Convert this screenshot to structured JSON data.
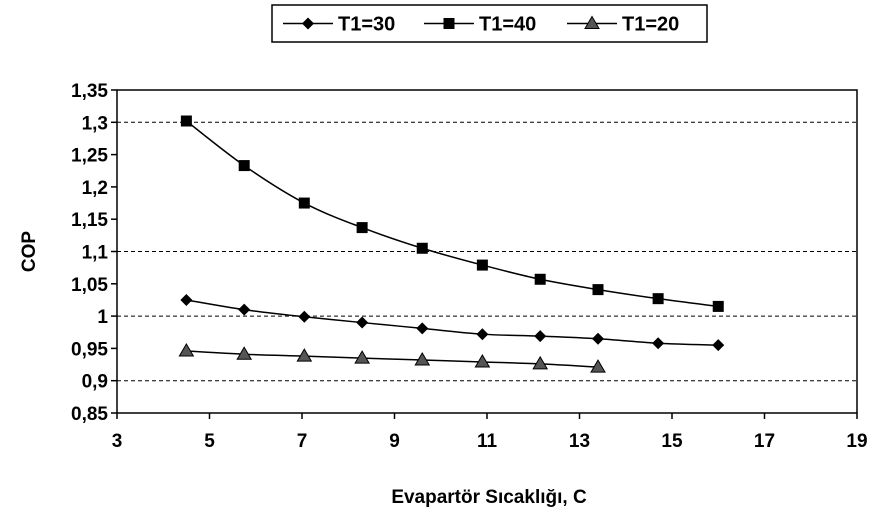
{
  "chart_data": {
    "type": "line",
    "title": "",
    "xlabel": "Evapartör Sıcaklığı,  C",
    "ylabel": "COP",
    "xlim": [
      3,
      19
    ],
    "ylim": [
      0.85,
      1.35
    ],
    "xticks": [
      3,
      5,
      7,
      9,
      11,
      13,
      15,
      17,
      19
    ],
    "xtick_labels": [
      "3",
      "5",
      "7",
      "9",
      "11",
      "13",
      "15",
      "17",
      "19"
    ],
    "yticks": [
      0.85,
      0.9,
      0.95,
      1,
      1.05,
      1.1,
      1.15,
      1.2,
      1.25,
      1.3,
      1.35
    ],
    "ytick_labels": [
      "0,85",
      "0,9",
      "0,95",
      "1",
      "1,05",
      "1,1",
      "1,15",
      "1,2",
      "1,25",
      "1,3",
      "1,35"
    ],
    "gridlines_y": [
      0.9,
      1,
      1.1,
      1.3
    ],
    "legend_position": "top",
    "series": [
      {
        "name": "T1=30",
        "marker": "diamond",
        "color": "#000000",
        "x": [
          4.5,
          5.75,
          7.05,
          8.3,
          9.6,
          10.9,
          12.15,
          13.4,
          14.7,
          16.0
        ],
        "y": [
          1.025,
          1.01,
          0.999,
          0.99,
          0.981,
          0.972,
          0.969,
          0.965,
          0.958,
          0.955
        ]
      },
      {
        "name": "T1=40",
        "marker": "square",
        "color": "#000000",
        "x": [
          4.5,
          5.75,
          7.05,
          8.3,
          9.6,
          10.9,
          12.15,
          13.4,
          14.7,
          16.0
        ],
        "y": [
          1.302,
          1.233,
          1.175,
          1.137,
          1.105,
          1.079,
          1.057,
          1.041,
          1.027,
          1.015
        ]
      },
      {
        "name": "T1=20",
        "marker": "triangle",
        "color": "#000000",
        "x": [
          4.5,
          5.75,
          7.05,
          8.3,
          9.6,
          10.9,
          12.15,
          13.4
        ],
        "y": [
          0.946,
          0.941,
          0.938,
          0.935,
          0.932,
          0.929,
          0.926,
          0.921
        ]
      }
    ]
  }
}
